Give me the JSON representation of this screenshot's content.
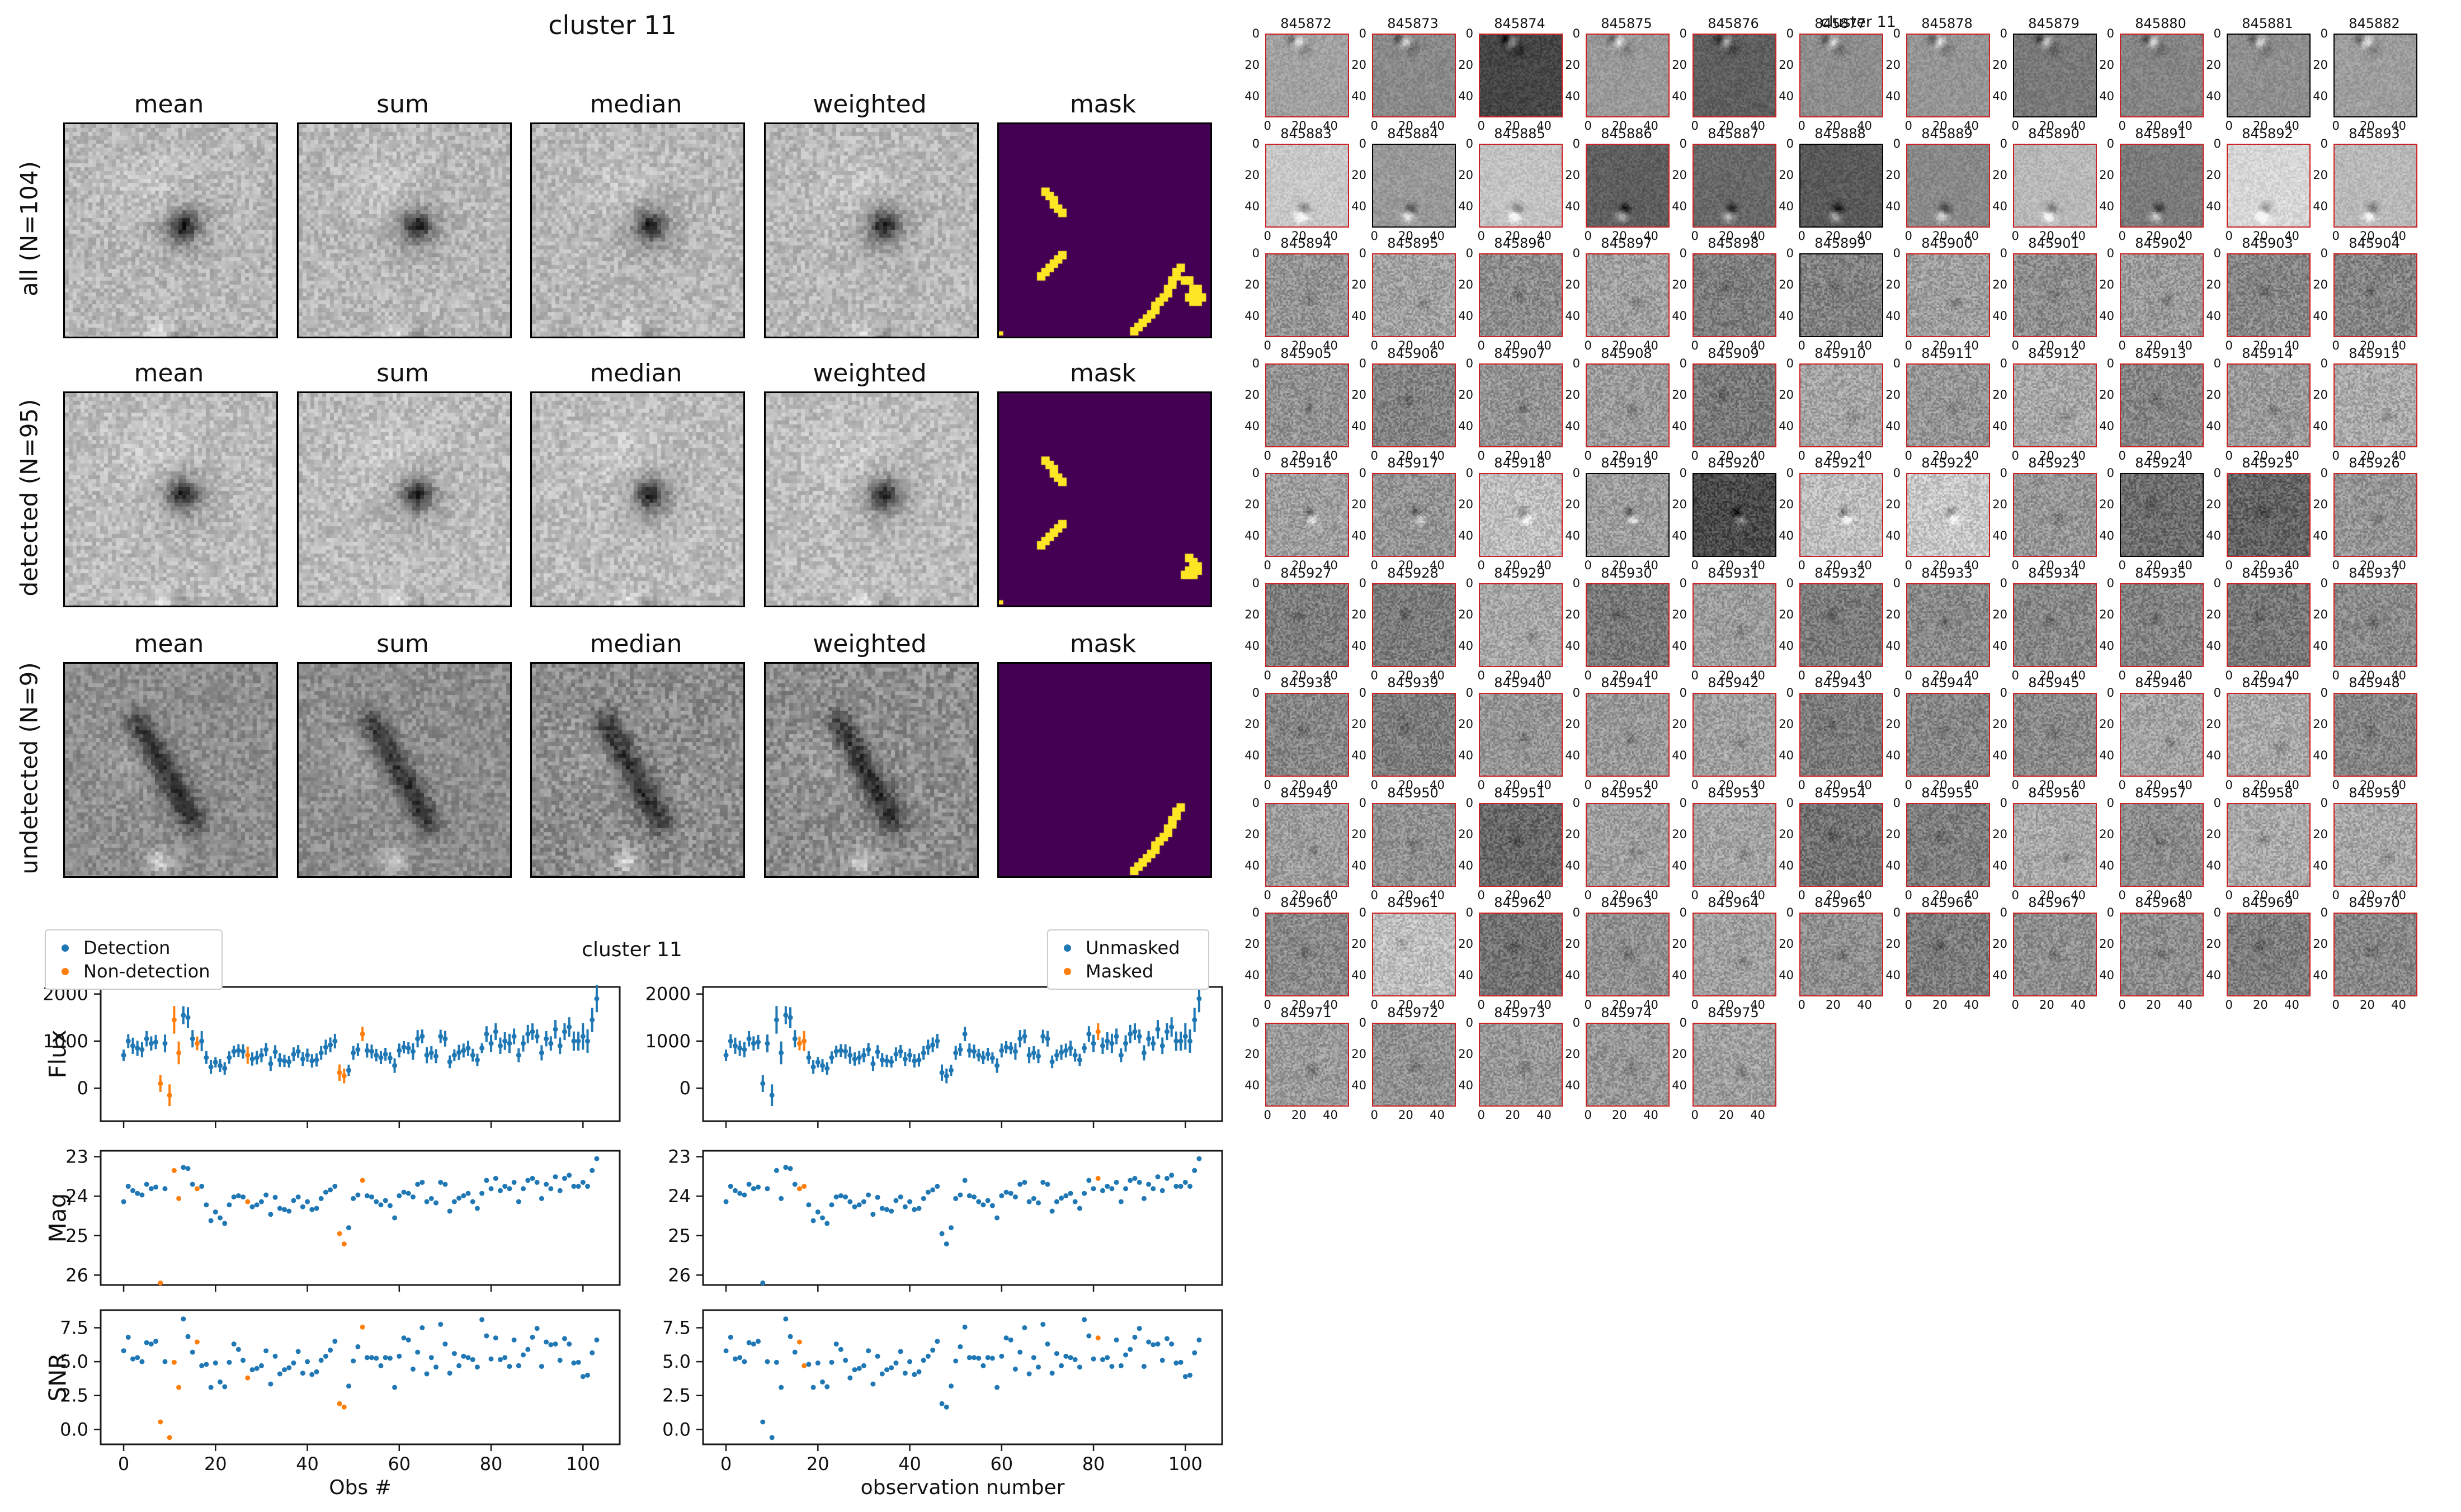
{
  "stamp_figure": {
    "title": "cluster 11",
    "columns": [
      "mean",
      "sum",
      "median",
      "weighted",
      "mask"
    ],
    "rows": [
      {
        "label": "all (N=104)"
      },
      {
        "label": "detected (N=95)"
      },
      {
        "label": "undetected (N=9)"
      }
    ],
    "mask_colors": {
      "bg": "#440154",
      "fg": "#FDE725"
    },
    "mask_cells": {
      "streak_ul": [
        [
          10,
          15
        ],
        [
          11,
          16
        ],
        [
          12,
          17
        ],
        [
          12,
          18
        ],
        [
          13,
          19
        ],
        [
          14,
          20
        ]
      ],
      "streak_ml": [
        [
          9,
          35
        ],
        [
          10,
          34
        ],
        [
          11,
          33
        ],
        [
          12,
          32
        ],
        [
          13,
          31
        ],
        [
          14,
          30
        ]
      ],
      "streak_br": [
        [
          31,
          48
        ],
        [
          32,
          47
        ],
        [
          33,
          46
        ],
        [
          34,
          45
        ],
        [
          35,
          44
        ],
        [
          36,
          43
        ],
        [
          36,
          42
        ],
        [
          37,
          41
        ],
        [
          38,
          40
        ],
        [
          39,
          39
        ],
        [
          39,
          38
        ],
        [
          40,
          37
        ],
        [
          40,
          36
        ],
        [
          41,
          35
        ],
        [
          41,
          34
        ],
        [
          42,
          33
        ]
      ],
      "blob_r1": [
        [
          45,
          38
        ],
        [
          46,
          38
        ],
        [
          45,
          39
        ],
        [
          46,
          39
        ],
        [
          44,
          40
        ],
        [
          46,
          40
        ],
        [
          47,
          40
        ],
        [
          45,
          41
        ],
        [
          46,
          41
        ],
        [
          43,
          36
        ],
        [
          44,
          36
        ]
      ],
      "blob_r2": [
        [
          44,
          38
        ],
        [
          45,
          39
        ],
        [
          46,
          40
        ],
        [
          44,
          41
        ],
        [
          45,
          41
        ],
        [
          46,
          41
        ],
        [
          43,
          42
        ],
        [
          44,
          42
        ],
        [
          45,
          42
        ]
      ],
      "dot": [
        [
          0,
          49
        ]
      ]
    },
    "mask_rows_cells": [
      [
        "streak_ul",
        "streak_ml",
        "streak_br",
        "blob_r1",
        "dot"
      ],
      [
        "streak_ul",
        "streak_ml",
        "blob_r2",
        "dot"
      ],
      [
        "streak_br"
      ]
    ]
  },
  "lightcurves": {
    "title": "cluster 11",
    "legend_left": [
      {
        "label": "Detection",
        "color": "#1f77b4"
      },
      {
        "label": "Non-detection",
        "color": "#ff7f0e"
      }
    ],
    "legend_right": [
      {
        "label": "Unmasked",
        "color": "#1f77b4"
      },
      {
        "label": "Masked",
        "color": "#ff7f0e"
      }
    ],
    "ylabels": [
      "Flux",
      "Mag",
      "SNR"
    ],
    "xlabel_left": "Obs #",
    "xlabel_right": "observation number"
  },
  "chart_data": {
    "type": "scatter",
    "title": "cluster 11",
    "xlabel_left": "Obs #",
    "xlabel_right": "observation number",
    "ylabels": [
      "Flux",
      "Mag",
      "SNR"
    ],
    "x_ticks": [
      0,
      20,
      40,
      60,
      80,
      100
    ],
    "flux_ticks": [
      0,
      1000,
      2000
    ],
    "mag_ticks": [
      23,
      24,
      25,
      26
    ],
    "snr_ticks": [
      0.0,
      2.5,
      5.0,
      7.5
    ],
    "xlim": [
      -5,
      108
    ],
    "flux_ylim": [
      -700,
      2150
    ],
    "mag_ylim_topbottom": [
      22.85,
      26.25
    ],
    "snr_ylim": [
      -1.1,
      8.8
    ],
    "n_obs": 104,
    "flux": [
      700,
      1000,
      900,
      850,
      820,
      1050,
      950,
      980,
      100,
      950,
      -150,
      1450,
      750,
      1550,
      1500,
      1050,
      950,
      1000,
      650,
      450,
      550,
      480,
      420,
      650,
      780,
      800,
      780,
      700,
      620,
      650,
      700,
      820,
      520,
      770,
      600,
      580,
      560,
      720,
      780,
      620,
      700,
      580,
      600,
      750,
      870,
      920,
      1000,
      330,
      260,
      380,
      750,
      820,
      1150,
      800,
      780,
      700,
      650,
      720,
      640,
      480,
      800,
      870,
      850,
      780,
      1050,
      1100,
      700,
      750,
      680,
      1100,
      1050,
      560,
      700,
      760,
      800,
      850,
      700,
      600,
      850,
      1150,
      950,
      1200,
      900,
      1000,
      950,
      1100,
      700,
      950,
      1150,
      1200,
      1100,
      750,
      1050,
      950,
      1250,
      900,
      1200,
      1300,
      1000,
      1000,
      1100,
      1000,
      1450,
      1900
    ],
    "mag": [
      24.14,
      23.75,
      23.86,
      23.93,
      23.97,
      23.7,
      23.81,
      23.77,
      26.2,
      23.81,
      null,
      23.35,
      24.06,
      23.27,
      23.3,
      23.7,
      23.81,
      23.75,
      24.22,
      24.62,
      24.4,
      24.55,
      24.69,
      24.22,
      24.02,
      23.99,
      24.02,
      24.14,
      24.27,
      24.22,
      24.14,
      23.97,
      24.46,
      24.03,
      24.31,
      24.34,
      24.38,
      24.11,
      24.02,
      24.27,
      24.14,
      24.34,
      24.31,
      24.06,
      23.9,
      23.84,
      23.75,
      24.95,
      25.21,
      24.8,
      24.06,
      23.97,
      23.6,
      23.99,
      24.02,
      24.14,
      24.22,
      24.11,
      24.24,
      24.55,
      23.99,
      23.9,
      23.93,
      24.02,
      23.7,
      23.65,
      24.14,
      24.06,
      24.17,
      23.65,
      23.7,
      24.38,
      24.14,
      24.05,
      23.99,
      23.93,
      24.14,
      24.31,
      23.93,
      23.6,
      23.81,
      23.55,
      23.86,
      23.75,
      23.81,
      23.65,
      24.14,
      23.81,
      23.6,
      23.55,
      23.65,
      24.06,
      23.7,
      23.81,
      23.51,
      23.86,
      23.55,
      23.47,
      23.75,
      23.75,
      23.65,
      23.75,
      23.35,
      23.05
    ],
    "snr": [
      5.8,
      6.8,
      5.2,
      5.3,
      5.0,
      6.4,
      6.3,
      6.5,
      0.55,
      5.0,
      -0.6,
      4.95,
      3.1,
      8.15,
      6.85,
      5.7,
      6.45,
      4.7,
      4.8,
      3.1,
      4.9,
      3.5,
      3.15,
      4.95,
      6.3,
      5.9,
      5.1,
      3.8,
      4.4,
      4.5,
      4.7,
      5.8,
      3.35,
      5.4,
      4.1,
      4.4,
      4.55,
      4.9,
      5.75,
      4.15,
      5.0,
      4.05,
      4.25,
      5.1,
      5.4,
      5.85,
      6.5,
      1.9,
      1.65,
      3.2,
      5.05,
      6.1,
      7.55,
      5.3,
      5.3,
      5.25,
      4.7,
      5.3,
      5.25,
      3.1,
      5.4,
      6.75,
      6.6,
      4.45,
      5.7,
      7.5,
      4.1,
      5.3,
      4.6,
      7.75,
      6.3,
      4.15,
      5.6,
      4.7,
      5.4,
      5.3,
      5.15,
      4.6,
      8.1,
      6.9,
      5.2,
      6.75,
      5.15,
      5.3,
      4.65,
      6.6,
      4.7,
      5.5,
      5.9,
      6.8,
      7.45,
      4.65,
      6.45,
      6.25,
      6.3,
      5.1,
      6.7,
      6.3,
      4.9,
      4.95,
      3.9,
      4.0,
      5.65,
      6.6
    ],
    "nondetection_idx": [
      8,
      10,
      11,
      12,
      16,
      27,
      47,
      48,
      52
    ],
    "masked_idx": [
      16,
      17,
      81
    ],
    "legend_left": [
      "Detection",
      "Non-detection"
    ],
    "legend_right": [
      "Unmasked",
      "Masked"
    ],
    "colors": {
      "primary": "#1f77b4",
      "secondary": "#ff7f0e"
    }
  },
  "thumb_grid": {
    "suptitle": "cluster 11",
    "x_ticks": [
      0,
      20,
      40
    ],
    "y_ticks": [
      0,
      20,
      40
    ],
    "border_detected": "#CC2222",
    "border_undetected": "#000000",
    "ids": [
      845872,
      845873,
      845874,
      845875,
      845876,
      845877,
      845878,
      845879,
      845880,
      845881,
      845882,
      845883,
      845884,
      845885,
      845886,
      845887,
      845888,
      845889,
      845890,
      845891,
      845892,
      845893,
      845894,
      845895,
      845896,
      845897,
      845898,
      845899,
      845900,
      845901,
      845902,
      845903,
      845904,
      845905,
      845906,
      845907,
      845908,
      845909,
      845910,
      845911,
      845912,
      845913,
      845914,
      845915,
      845916,
      845917,
      845918,
      845919,
      845920,
      845921,
      845922,
      845923,
      845924,
      845925,
      845926,
      845927,
      845928,
      845929,
      845930,
      845931,
      845932,
      845933,
      845934,
      845935,
      845936,
      845937,
      845938,
      845939,
      845940,
      845941,
      845942,
      845943,
      845944,
      845945,
      845946,
      845947,
      845948,
      845949,
      845950,
      845951,
      845952,
      845953,
      845954,
      845955,
      845956,
      845957,
      845958,
      845959,
      845960,
      845961,
      845962,
      845963,
      845964,
      845965,
      845966,
      845967,
      845968,
      845969,
      845970,
      845971,
      845972,
      845973,
      845974,
      845975
    ],
    "undetected_ids": [
      845879,
      845881,
      845882,
      845884,
      845888,
      845899,
      845919,
      845920,
      845924
    ],
    "tone_overrides": {
      "845874": 70,
      "845876": 95,
      "845883": 200,
      "845885": 195,
      "845886": 95,
      "845887": 105,
      "845888": 90,
      "845890": 185,
      "845892": 215,
      "845893": 185,
      "845918": 190,
      "845920": 75,
      "845921": 190,
      "845922": 200,
      "845924": 110,
      "845925": 100,
      "845936": 120,
      "845951": 105,
      "845954": 115,
      "845958": 170,
      "845961": 190,
      "845962": 115
    }
  },
  "colors": {
    "detection": "#1f77b4",
    "nondetection": "#ff7f0e",
    "mask_bg": "#440154",
    "mask_fg": "#FDE725",
    "thumb_border": "#CC2222"
  }
}
